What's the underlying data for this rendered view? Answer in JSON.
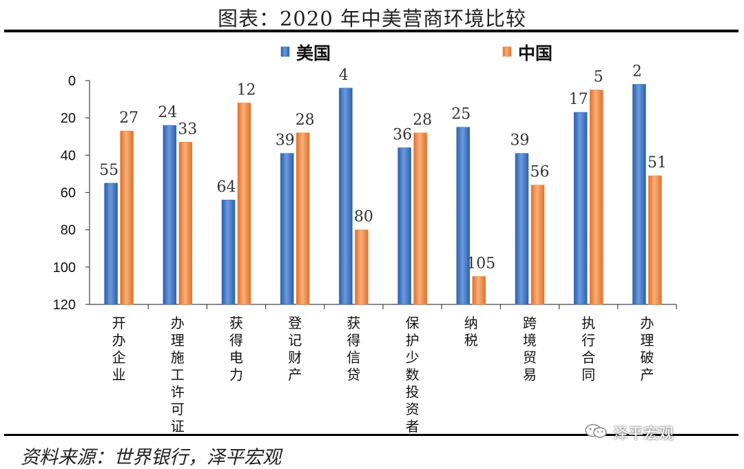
{
  "title": "图表：2020 年中美营商环境比较",
  "source": "资料来源：世界银行，泽平宏观",
  "watermark": "泽平宏观",
  "chart_data": {
    "type": "bar",
    "title": "图表：2020 年中美营商环境比较",
    "categories": [
      "开办企业",
      "办理施工许可证",
      "获得电力",
      "登记财产",
      "获得信贷",
      "保护少数投资者",
      "纳税",
      "跨境贸易",
      "执行合同",
      "办理破产"
    ],
    "series": [
      {
        "name": "美国",
        "color": "#3f74c4",
        "values": [
          55,
          24,
          64,
          39,
          4,
          36,
          25,
          39,
          17,
          2
        ]
      },
      {
        "name": "中国",
        "color": "#f08a45",
        "values": [
          27,
          33,
          12,
          28,
          80,
          28,
          105,
          56,
          5,
          51
        ]
      }
    ],
    "ylim": [
      0,
      120
    ],
    "y_inverted": true,
    "yticks": [
      "0",
      "20",
      "40",
      "60",
      "80",
      "100",
      "120"
    ],
    "legend_position": "top-center",
    "grid": false
  }
}
